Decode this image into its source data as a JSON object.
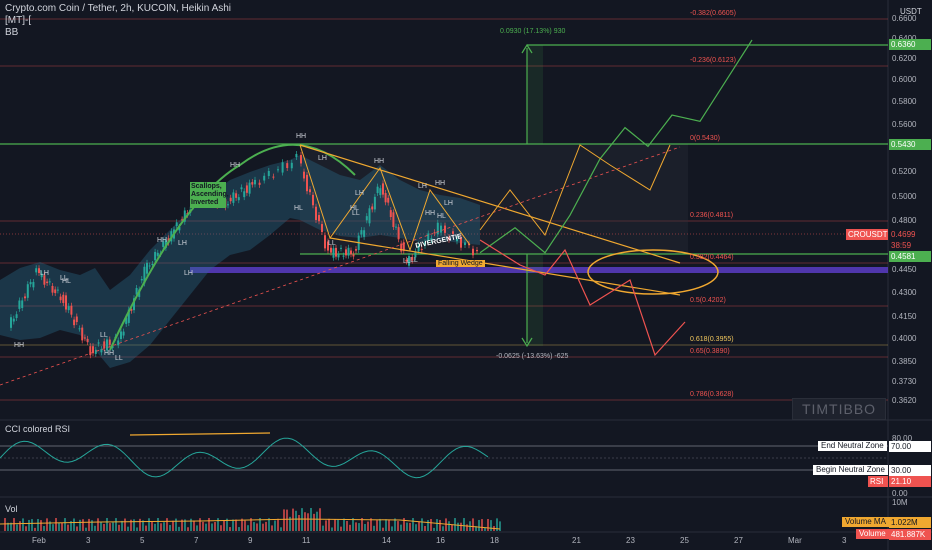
{
  "header": {
    "title": "Crypto.com Coin / Tether, 2h, KUCOIN, Heikin Ashi",
    "indicator_1": "[MT]-[",
    "indicator_2": "BB"
  },
  "price_axis": {
    "unit": "USDT",
    "ticks": [
      "0.6600",
      "0.6400",
      "0.6200",
      "0.6000",
      "0.5800",
      "0.5600",
      "0.5400",
      "0.5200",
      "0.5000",
      "0.4800",
      "0.4600",
      "0.4450",
      "0.4300",
      "0.4150",
      "0.4000",
      "0.3850",
      "0.3730",
      "0.3620"
    ]
  },
  "price_tags": {
    "target": "0.6360",
    "resistance": "0.5430",
    "symbol": "CROUSDT",
    "last": "0.4699",
    "countdown": "38:59",
    "support": "0.4581"
  },
  "time_axis": {
    "ticks": [
      "Feb",
      "3",
      "5",
      "7",
      "9",
      "11",
      "14",
      "16",
      "18",
      "21",
      "23",
      "25",
      "27",
      "Mar",
      "3"
    ]
  },
  "fib_levels": [
    {
      "label": "-0.382(0.6605)",
      "color": "#ef5350"
    },
    {
      "label": "-0.236(0.6123)",
      "color": "#ef5350"
    },
    {
      "label": "0(0.5430)",
      "color": "#ef5350"
    },
    {
      "label": "0.236(0.4811)",
      "color": "#ef5350"
    },
    {
      "label": "0.382(0.4464)",
      "color": "#ef5350"
    },
    {
      "label": "0.5(0.4202)",
      "color": "#ef5350"
    },
    {
      "label": "0.618(0.3955)",
      "color": "#f0c75e"
    },
    {
      "label": "0.65(0.3890)",
      "color": "#ef5350"
    },
    {
      "label": "0.786(0.3628)",
      "color": "#ef5350"
    }
  ],
  "annotations": {
    "measure_up": "0.0930 (17.13%) 930",
    "measure_down": "-0.0625 (-13.63%) -625",
    "pattern_box": "Scallops, Ascending, Inverted",
    "divergence": "DIVERGENTIE",
    "wedge": "Falling Wedge",
    "swing_labels": [
      "HH",
      "HH",
      "HH",
      "LH",
      "HL",
      "HH",
      "HL",
      "HH",
      "LL",
      "LH",
      "HL",
      "LL",
      "LH",
      "HH",
      "LL",
      "LH",
      "HH",
      "LL",
      "LH",
      "LH",
      "HL",
      "LL",
      "LH",
      "HH",
      "LL",
      "LL"
    ]
  },
  "watermark": "TIMTIBBO",
  "rsi_panel": {
    "title": "CCI colored RSI",
    "ticks": [
      "80.00",
      "70.00",
      "30.00",
      "21.10",
      "0.00"
    ],
    "end_zone": "End Neutral Zone",
    "end_zone_value": "70.00",
    "begin_zone": "Begin Neutral Zone",
    "begin_zone_value": "30.00",
    "rsi_label": "RSI",
    "rsi_value": "21.10"
  },
  "volume_panel": {
    "title": "Vol",
    "scale": "10M",
    "ma_label": "Volume MA",
    "ma_value": "1.022M",
    "vol_label": "Volume",
    "vol_value": "481.887K"
  },
  "chart_data": {
    "type": "line",
    "title": "Crypto.com Coin / Tether, 2h, KUCOIN, Heikin Ashi",
    "x_categories": [
      "Feb",
      "3",
      "5",
      "7",
      "9",
      "11",
      "14",
      "16",
      "18",
      "21",
      "23",
      "25",
      "27",
      "Mar"
    ],
    "series": [
      {
        "name": "CROUSDT",
        "x": [
          "Feb",
          "2",
          "3",
          "4",
          "5",
          "6",
          "7",
          "8",
          "9",
          "10",
          "11",
          "12",
          "13",
          "14",
          "15",
          "16",
          "17"
        ],
        "values": [
          0.41,
          0.455,
          0.432,
          0.392,
          0.4,
          0.455,
          0.485,
          0.515,
          0.51,
          0.524,
          0.545,
          0.47,
          0.47,
          0.525,
          0.462,
          0.49,
          0.47
        ]
      },
      {
        "name": "projection-up",
        "x": [
          "17",
          "18",
          "19",
          "20",
          "21",
          "22",
          "23",
          "24",
          "25",
          "26",
          "27"
        ],
        "values": [
          0.47,
          0.49,
          0.47,
          0.5,
          0.545,
          0.57,
          0.555,
          0.58,
          0.575,
          0.61,
          0.64
        ]
      },
      {
        "name": "projection-down",
        "x": [
          "17",
          "18",
          "19",
          "20",
          "21",
          "22",
          "23",
          "24"
        ],
        "values": [
          0.455,
          0.445,
          0.455,
          0.43,
          0.44,
          0.41,
          0.39,
          0.42
        ]
      }
    ],
    "ylim": [
      0.355,
      0.67
    ],
    "scale": "log",
    "rsi": {
      "neutral_zone": [
        30,
        70
      ],
      "last": 21.1,
      "ylim": [
        0,
        80
      ]
    },
    "volume": {
      "ma": "1.022M",
      "last": "481.887K"
    }
  }
}
